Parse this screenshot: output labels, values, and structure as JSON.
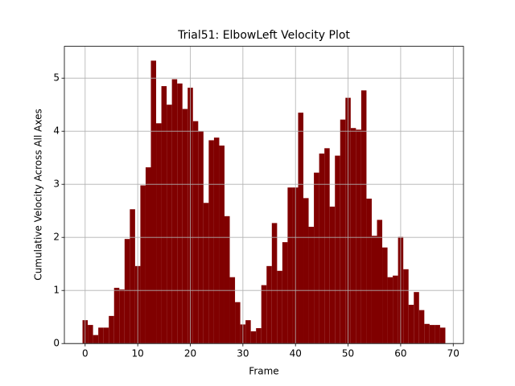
{
  "chart_data": {
    "type": "bar",
    "title": "Trial51: ElbowLeft Velocity Plot",
    "x_label": "Frame",
    "y_label": "Cumulative Velocity Across All Axes",
    "x": [
      0,
      1,
      2,
      3,
      4,
      5,
      6,
      7,
      8,
      9,
      10,
      11,
      12,
      13,
      14,
      15,
      16,
      17,
      18,
      19,
      20,
      21,
      22,
      23,
      24,
      25,
      26,
      27,
      28,
      29,
      30,
      31,
      32,
      33,
      34,
      35,
      36,
      37,
      38,
      39,
      40,
      41,
      42,
      43,
      44,
      45,
      46,
      47,
      48,
      49,
      50,
      51,
      52,
      53,
      54,
      55,
      56,
      57,
      58,
      59,
      60,
      61,
      62,
      63,
      64,
      65,
      66,
      67,
      68
    ],
    "values": [
      0.44,
      0.35,
      0.16,
      0.3,
      0.3,
      0.52,
      1.05,
      1.02,
      1.97,
      2.53,
      1.46,
      2.98,
      3.32,
      5.33,
      4.15,
      4.85,
      4.5,
      4.98,
      4.9,
      4.42,
      4.82,
      4.19,
      4.0,
      2.65,
      3.83,
      3.88,
      3.73,
      2.4,
      1.25,
      0.78,
      0.36,
      0.44,
      0.23,
      0.29,
      1.1,
      1.46,
      2.27,
      1.37,
      1.91,
      2.94,
      2.94,
      4.35,
      2.74,
      2.2,
      3.22,
      3.58,
      3.68,
      2.58,
      3.54,
      4.22,
      4.63,
      4.06,
      4.03,
      4.77,
      2.73,
      2.03,
      2.33,
      1.81,
      1.25,
      1.28,
      2.01,
      1.4,
      0.73,
      0.97,
      0.63,
      0.37,
      0.35,
      0.35,
      0.3
    ],
    "color": "#800000",
    "xlim": [
      -3.95,
      71.95
    ],
    "xticks": [
      0,
      10,
      20,
      30,
      40,
      50,
      60,
      70
    ],
    "ylim": [
      0,
      5.6
    ],
    "yticks": [
      0,
      1,
      2,
      3,
      4,
      5
    ],
    "grid": true
  }
}
